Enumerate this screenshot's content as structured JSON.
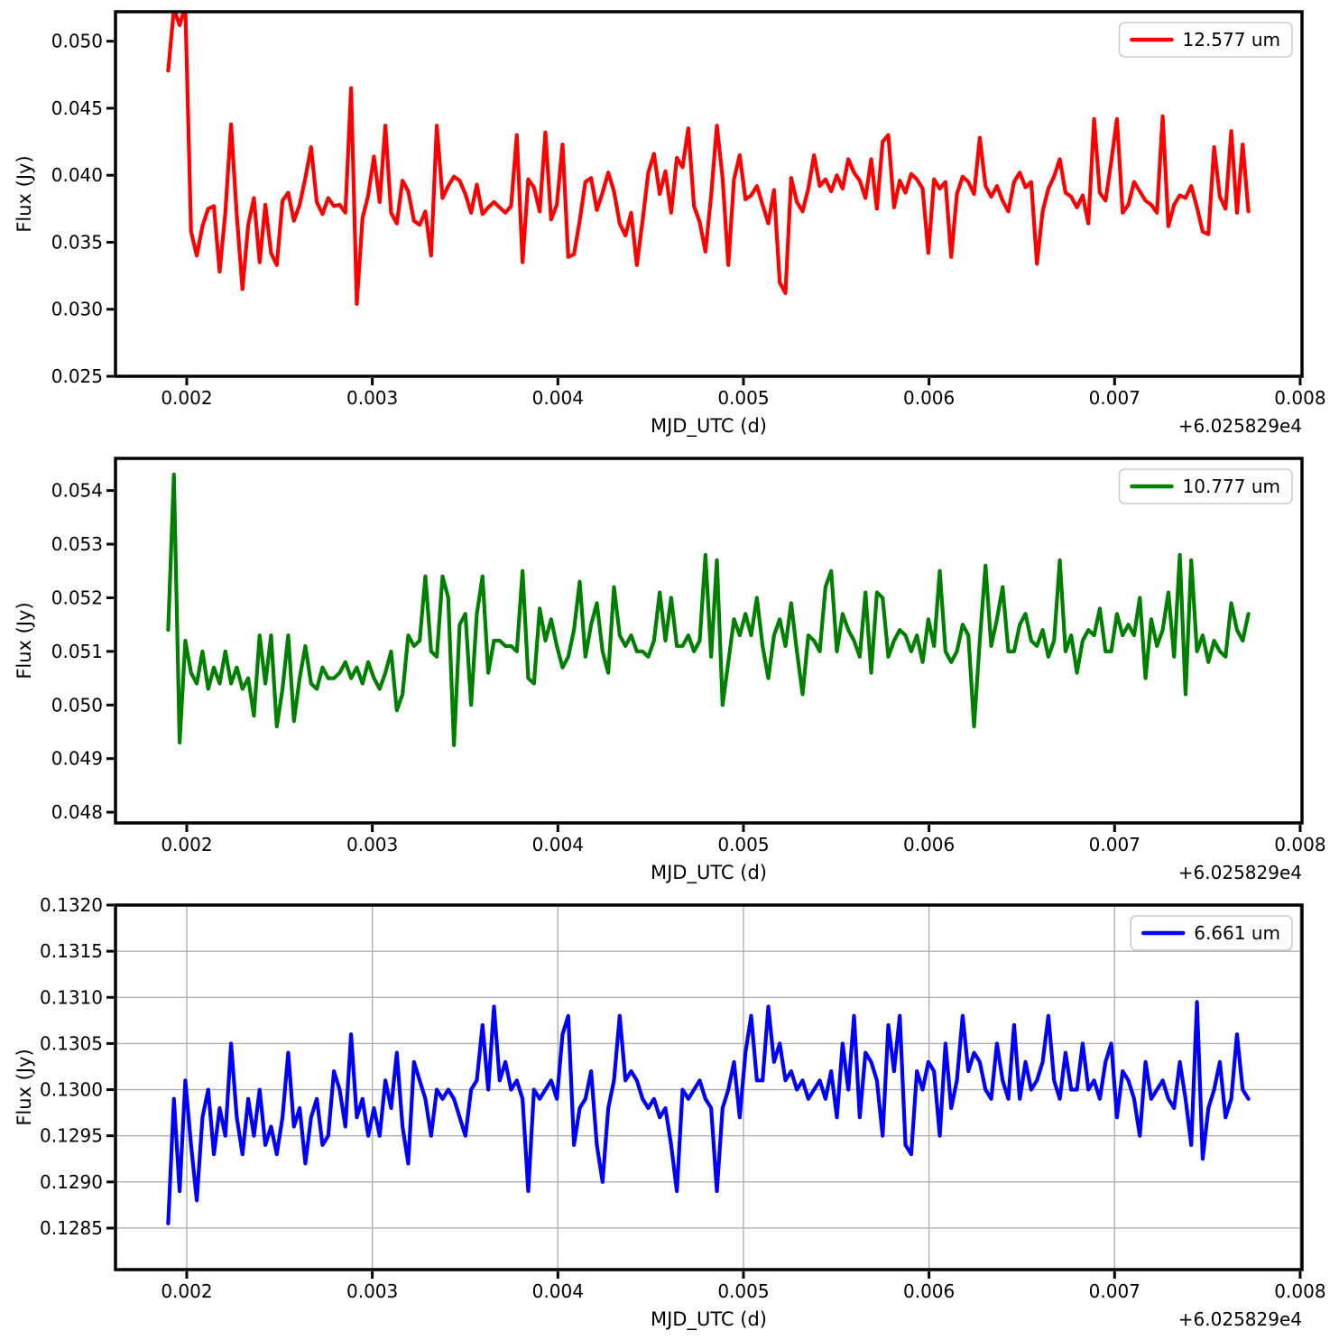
{
  "figure": {
    "background": "#ffffff",
    "frame_color": "#000000",
    "grid_color": "#b0b0b0",
    "legend_border_color": "#cccccc"
  },
  "chart_data": [
    {
      "type": "line",
      "xlabel": "MJD_UTC (d)",
      "ylabel": "Flux (Jy)",
      "offset_text": "+6.025829e4",
      "legend": {
        "label": "12.577 um",
        "color": "#ff0000",
        "position": "upper right"
      },
      "grid": false,
      "xlim": [
        0.001616,
        0.00801
      ],
      "ylim": [
        0.025,
        0.0522
      ],
      "xticks": [
        0.002,
        0.003,
        0.004,
        0.005,
        0.006,
        0.007,
        0.008
      ],
      "xtick_labels": [
        "0.002",
        "0.003",
        "0.004",
        "0.005",
        "0.006",
        "0.007",
        "0.008"
      ],
      "yticks": [
        0.025,
        0.03,
        0.035,
        0.04,
        0.045,
        0.05
      ],
      "ytick_labels": [
        "0.025",
        "0.030",
        "0.035",
        "0.040",
        "0.045",
        "0.050"
      ],
      "series": {
        "name": "12.577 um",
        "color": "#ff0000",
        "x_start": 0.0019,
        "x_step": 3.08e-05,
        "y": [
          0.0478,
          0.0524,
          0.0512,
          0.0526,
          0.0358,
          0.034,
          0.0362,
          0.0375,
          0.0377,
          0.0328,
          0.0372,
          0.0438,
          0.037,
          0.0315,
          0.0363,
          0.0383,
          0.0335,
          0.0378,
          0.0342,
          0.0333,
          0.0381,
          0.0387,
          0.0366,
          0.0378,
          0.0398,
          0.0421,
          0.038,
          0.0371,
          0.0383,
          0.0377,
          0.0378,
          0.0372,
          0.0465,
          0.0304,
          0.0368,
          0.0385,
          0.0414,
          0.038,
          0.0437,
          0.0372,
          0.0364,
          0.0396,
          0.0388,
          0.0366,
          0.0363,
          0.0373,
          0.034,
          0.0437,
          0.0383,
          0.0392,
          0.0399,
          0.0396,
          0.0386,
          0.0372,
          0.0393,
          0.0371,
          0.0376,
          0.038,
          0.0376,
          0.0372,
          0.0377,
          0.043,
          0.0335,
          0.0397,
          0.0391,
          0.0373,
          0.0432,
          0.0367,
          0.0378,
          0.0423,
          0.0339,
          0.0341,
          0.0366,
          0.0395,
          0.0398,
          0.0374,
          0.0387,
          0.0402,
          0.0388,
          0.0364,
          0.0355,
          0.0372,
          0.0333,
          0.0366,
          0.0402,
          0.0416,
          0.0386,
          0.0403,
          0.0372,
          0.0413,
          0.0406,
          0.0435,
          0.0377,
          0.0365,
          0.0343,
          0.0385,
          0.0437,
          0.0398,
          0.0333,
          0.0397,
          0.0415,
          0.0382,
          0.0385,
          0.0392,
          0.0378,
          0.0364,
          0.0389,
          0.032,
          0.0312,
          0.0398,
          0.038,
          0.0373,
          0.039,
          0.0415,
          0.0392,
          0.0397,
          0.0388,
          0.04,
          0.039,
          0.0412,
          0.0402,
          0.0396,
          0.0383,
          0.0412,
          0.0375,
          0.0425,
          0.043,
          0.0376,
          0.0396,
          0.0387,
          0.0401,
          0.0397,
          0.039,
          0.0342,
          0.0397,
          0.039,
          0.0395,
          0.0339,
          0.0386,
          0.0399,
          0.0395,
          0.0386,
          0.0428,
          0.0392,
          0.0384,
          0.0392,
          0.0381,
          0.0373,
          0.0395,
          0.0402,
          0.0391,
          0.0395,
          0.0334,
          0.0373,
          0.039,
          0.0399,
          0.0412,
          0.0387,
          0.0384,
          0.0376,
          0.0385,
          0.0364,
          0.0442,
          0.0387,
          0.0381,
          0.041,
          0.0442,
          0.0372,
          0.0378,
          0.0395,
          0.0388,
          0.0381,
          0.0378,
          0.0372,
          0.0444,
          0.0362,
          0.0378,
          0.0385,
          0.0383,
          0.0392,
          0.0376,
          0.0358,
          0.0356,
          0.0421,
          0.0384,
          0.0375,
          0.0433,
          0.0372,
          0.0423,
          0.0373
        ]
      }
    },
    {
      "type": "line",
      "xlabel": "MJD_UTC (d)",
      "ylabel": "Flux (Jy)",
      "offset_text": "+6.025829e4",
      "legend": {
        "label": "10.777 um",
        "color": "#008000",
        "position": "upper right"
      },
      "grid": false,
      "xlim": [
        0.001616,
        0.00801
      ],
      "ylim": [
        0.0478,
        0.0546
      ],
      "xticks": [
        0.002,
        0.003,
        0.004,
        0.005,
        0.006,
        0.007,
        0.008
      ],
      "xtick_labels": [
        "0.002",
        "0.003",
        "0.004",
        "0.005",
        "0.006",
        "0.007",
        "0.008"
      ],
      "yticks": [
        0.048,
        0.049,
        0.05,
        0.051,
        0.052,
        0.053,
        0.054
      ],
      "ytick_labels": [
        "0.048",
        "0.049",
        "0.050",
        "0.051",
        "0.052",
        "0.053",
        "0.054"
      ],
      "series": {
        "name": "10.777 um",
        "color": "#008000",
        "x_start": 0.0019,
        "x_step": 3.08e-05,
        "y": [
          0.0514,
          0.0543,
          0.0493,
          0.0512,
          0.0506,
          0.0504,
          0.051,
          0.0503,
          0.0507,
          0.0504,
          0.051,
          0.0504,
          0.0507,
          0.0503,
          0.0505,
          0.0498,
          0.0513,
          0.0504,
          0.0513,
          0.0496,
          0.0503,
          0.0513,
          0.0497,
          0.0505,
          0.0511,
          0.0504,
          0.0503,
          0.0507,
          0.0505,
          0.0505,
          0.0506,
          0.0508,
          0.0505,
          0.0507,
          0.0504,
          0.0508,
          0.0505,
          0.0503,
          0.0506,
          0.051,
          0.0499,
          0.0502,
          0.0513,
          0.0511,
          0.0512,
          0.0524,
          0.051,
          0.0509,
          0.0524,
          0.052,
          0.04925,
          0.0515,
          0.0517,
          0.05,
          0.0517,
          0.0524,
          0.0506,
          0.0512,
          0.0512,
          0.0511,
          0.0511,
          0.051,
          0.0525,
          0.0505,
          0.0504,
          0.0518,
          0.0512,
          0.0516,
          0.0511,
          0.0507,
          0.0509,
          0.0514,
          0.0523,
          0.0509,
          0.0515,
          0.0519,
          0.051,
          0.0506,
          0.0522,
          0.0513,
          0.0511,
          0.0513,
          0.051,
          0.051,
          0.0509,
          0.0512,
          0.0521,
          0.0512,
          0.052,
          0.0511,
          0.0511,
          0.0513,
          0.051,
          0.0512,
          0.0528,
          0.0509,
          0.0527,
          0.05,
          0.0508,
          0.0516,
          0.0513,
          0.0517,
          0.0513,
          0.052,
          0.0511,
          0.0505,
          0.0513,
          0.0516,
          0.0511,
          0.0519,
          0.051,
          0.0502,
          0.0513,
          0.0512,
          0.051,
          0.0522,
          0.0525,
          0.051,
          0.0517,
          0.0514,
          0.0512,
          0.0509,
          0.0521,
          0.0506,
          0.0521,
          0.052,
          0.0509,
          0.0512,
          0.0514,
          0.0513,
          0.051,
          0.0513,
          0.0508,
          0.0516,
          0.0511,
          0.0525,
          0.051,
          0.0508,
          0.051,
          0.0515,
          0.0513,
          0.0496,
          0.0512,
          0.0526,
          0.0511,
          0.0516,
          0.0522,
          0.051,
          0.051,
          0.0515,
          0.0517,
          0.0512,
          0.0511,
          0.0514,
          0.0509,
          0.0512,
          0.0527,
          0.051,
          0.0513,
          0.0506,
          0.0512,
          0.0514,
          0.0513,
          0.0518,
          0.051,
          0.051,
          0.0517,
          0.0513,
          0.0515,
          0.0513,
          0.052,
          0.0505,
          0.0516,
          0.0511,
          0.0514,
          0.0521,
          0.0509,
          0.0528,
          0.0502,
          0.0527,
          0.051,
          0.0513,
          0.0508,
          0.0512,
          0.051,
          0.0509,
          0.0519,
          0.0514,
          0.0512,
          0.0517
        ]
      }
    },
    {
      "type": "line",
      "xlabel": "MJD_UTC (d)",
      "ylabel": "Flux (Jy)",
      "offset_text": "+6.025829e4",
      "legend": {
        "label": "6.661 um",
        "color": "#0000ff",
        "position": "upper right"
      },
      "grid": true,
      "xlim": [
        0.001616,
        0.00801
      ],
      "ylim": [
        0.12805,
        0.132
      ],
      "xticks": [
        0.002,
        0.003,
        0.004,
        0.005,
        0.006,
        0.007,
        0.008
      ],
      "xtick_labels": [
        "0.002",
        "0.003",
        "0.004",
        "0.005",
        "0.006",
        "0.007",
        "0.008"
      ],
      "yticks": [
        0.1285,
        0.129,
        0.1295,
        0.13,
        0.1305,
        0.131,
        0.1315,
        0.132
      ],
      "ytick_labels": [
        "0.1285",
        "0.1290",
        "0.1295",
        "0.1300",
        "0.1305",
        "0.1310",
        "0.1315",
        "0.1320"
      ],
      "series": {
        "name": "6.661 um",
        "color": "#0000ff",
        "x_start": 0.0019,
        "x_step": 3.08e-05,
        "y": [
          0.12855,
          0.1299,
          0.1289,
          0.1301,
          0.1294,
          0.1288,
          0.1297,
          0.13,
          0.1293,
          0.1298,
          0.1295,
          0.1305,
          0.1297,
          0.1293,
          0.1299,
          0.1295,
          0.13,
          0.1294,
          0.1296,
          0.1293,
          0.1297,
          0.1304,
          0.1296,
          0.1298,
          0.1292,
          0.1297,
          0.1299,
          0.1294,
          0.1295,
          0.1302,
          0.13,
          0.1296,
          0.1306,
          0.1297,
          0.1299,
          0.1295,
          0.1298,
          0.1295,
          0.1301,
          0.1298,
          0.1304,
          0.1296,
          0.1292,
          0.1303,
          0.1301,
          0.1299,
          0.1295,
          0.13,
          0.1299,
          0.13,
          0.1299,
          0.1297,
          0.1295,
          0.13,
          0.1301,
          0.1307,
          0.13,
          0.1309,
          0.1301,
          0.1303,
          0.13,
          0.1301,
          0.1299,
          0.1289,
          0.13,
          0.1299,
          0.13,
          0.1301,
          0.1299,
          0.1306,
          0.1308,
          0.1294,
          0.1298,
          0.1299,
          0.1302,
          0.1294,
          0.129,
          0.1298,
          0.1301,
          0.1308,
          0.1301,
          0.1302,
          0.1301,
          0.1299,
          0.1298,
          0.1299,
          0.1297,
          0.1298,
          0.1294,
          0.1289,
          0.13,
          0.1299,
          0.13,
          0.1301,
          0.1299,
          0.1298,
          0.1289,
          0.1298,
          0.13,
          0.1303,
          0.1297,
          0.1304,
          0.1308,
          0.1301,
          0.1301,
          0.1309,
          0.1303,
          0.1305,
          0.1301,
          0.1302,
          0.13,
          0.1301,
          0.1299,
          0.13,
          0.1301,
          0.1299,
          0.1302,
          0.1297,
          0.1305,
          0.13,
          0.1308,
          0.1297,
          0.1304,
          0.1303,
          0.1301,
          0.1295,
          0.1307,
          0.1302,
          0.1308,
          0.1294,
          0.1293,
          0.1302,
          0.13,
          0.1303,
          0.1302,
          0.1295,
          0.1305,
          0.1298,
          0.1301,
          0.1308,
          0.1302,
          0.1304,
          0.1303,
          0.13,
          0.1299,
          0.1305,
          0.1301,
          0.1299,
          0.1307,
          0.1299,
          0.1303,
          0.13,
          0.1301,
          0.1303,
          0.1308,
          0.1301,
          0.1299,
          0.1304,
          0.13,
          0.13,
          0.1305,
          0.13,
          0.1301,
          0.1299,
          0.1303,
          0.1305,
          0.1297,
          0.1302,
          0.1301,
          0.1299,
          0.1295,
          0.1303,
          0.1299,
          0.13,
          0.1301,
          0.1299,
          0.1298,
          0.1303,
          0.1299,
          0.1294,
          0.13095,
          0.12925,
          0.1298,
          0.13,
          0.1303,
          0.1297,
          0.1299,
          0.1306,
          0.13,
          0.1299
        ]
      }
    }
  ]
}
